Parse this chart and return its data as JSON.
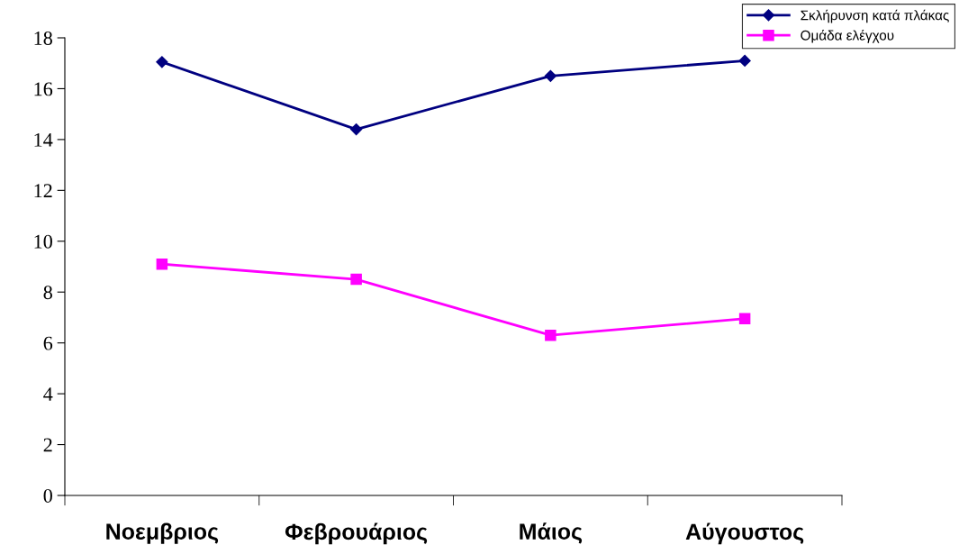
{
  "chart_data": {
    "type": "line",
    "categories": [
      "Νοεμβριος",
      "Φεβρουάριος",
      "Μάιος",
      "Αύγουστος"
    ],
    "series": [
      {
        "name": "Σκλήρυνση κατά πλάκας",
        "color": "#000080",
        "values": [
          17.05,
          14.4,
          16.5,
          17.1
        ],
        "marker": "diamond"
      },
      {
        "name": "Ομάδα ελέγχου",
        "color": "#ff00ff",
        "values": [
          9.1,
          8.5,
          6.3,
          6.95
        ],
        "marker": "square"
      }
    ],
    "ylim": [
      0,
      18
    ],
    "yticks": [
      0,
      2,
      4,
      6,
      8,
      10,
      12,
      14,
      16,
      18
    ],
    "grid": false,
    "legend": "top right",
    "line_style": "solid"
  }
}
